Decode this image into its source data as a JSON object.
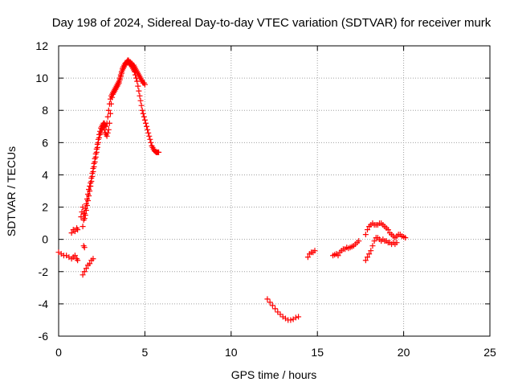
{
  "chart_data": {
    "type": "scatter",
    "title": "Day 198 of 2024, Sidereal Day-to-day VTEC variation (SDTVAR) for receiver murk",
    "xlabel": "GPS time / hours",
    "ylabel": "SDTVAR / TECUs",
    "xlim": [
      0,
      25
    ],
    "ylim": [
      -6,
      12
    ],
    "x_ticks": [
      0,
      5,
      10,
      15,
      20,
      25
    ],
    "y_ticks": [
      -6,
      -4,
      -2,
      0,
      2,
      4,
      6,
      8,
      10,
      12
    ],
    "x_tick_labels": [
      "0",
      "5",
      "10",
      "15",
      "20",
      "25"
    ],
    "y_tick_labels": [
      "-6",
      "-4",
      "-2",
      "0",
      "2",
      "4",
      "6",
      "8",
      "10",
      "12"
    ],
    "grid": true,
    "marker": "+",
    "color": "#ff0000",
    "series": [
      {
        "name": "SDTVAR",
        "segments": [
          {
            "x": [
              0.0,
              0.15,
              0.3,
              0.45,
              0.6,
              0.75,
              0.85,
              0.95,
              1.05,
              1.1
            ],
            "y": [
              -0.8,
              -0.9,
              -1.0,
              -1.0,
              -1.1,
              -1.2,
              -1.1,
              -1.0,
              -1.2,
              -1.3
            ]
          },
          {
            "x": [
              0.75,
              0.85,
              0.95,
              1.05,
              1.1
            ],
            "y": [
              0.4,
              0.6,
              0.5,
              0.7,
              0.6
            ]
          },
          {
            "x": [
              1.4,
              1.5,
              1.6,
              1.7,
              1.8,
              1.9,
              2.0
            ],
            "y": [
              -2.2,
              -2.0,
              -1.8,
              -1.6,
              -1.5,
              -1.3,
              -1.2
            ]
          },
          {
            "x": [
              1.4,
              1.45,
              1.5,
              1.55,
              1.6,
              1.65,
              1.7,
              1.75,
              1.8,
              1.85,
              1.9,
              1.95,
              2.0,
              2.05,
              2.1,
              2.15,
              2.2,
              2.25,
              2.3,
              2.35,
              2.4,
              2.45,
              2.5,
              2.55,
              2.6,
              2.65,
              2.7,
              2.75,
              2.8,
              2.85,
              2.9,
              2.95,
              3.0,
              3.05,
              3.1,
              3.15,
              3.2,
              3.25,
              3.3,
              3.35,
              3.4,
              3.45,
              3.5,
              3.55,
              3.6,
              3.65,
              3.7,
              3.75,
              3.8,
              3.85,
              3.9,
              3.95,
              4.0,
              4.05,
              4.1,
              4.15,
              4.2,
              4.25,
              4.3,
              4.35,
              4.4,
              4.45,
              4.5,
              4.55,
              4.6,
              4.65,
              4.7,
              4.75,
              4.8,
              4.85,
              4.9,
              4.95,
              5.0,
              5.05,
              5.1,
              5.15,
              5.2,
              5.25,
              5.3,
              5.35,
              5.4,
              5.45,
              5.5,
              5.55,
              5.6,
              5.65,
              5.7,
              5.75,
              5.8
            ],
            "y": [
              0.8,
              1.2,
              1.6,
              1.9,
              2.2,
              2.5,
              2.8,
              3.1,
              3.3,
              3.5,
              3.8,
              4.1,
              4.4,
              4.7,
              5.0,
              5.3,
              5.6,
              5.9,
              6.2,
              6.5,
              6.7,
              6.9,
              7.0,
              7.1,
              7.2,
              7.2,
              7.1,
              7.0,
              7.2,
              7.6,
              8.0,
              8.4,
              8.7,
              8.9,
              9.0,
              9.1,
              9.2,
              9.3,
              9.4,
              9.5,
              9.6,
              9.7,
              9.8,
              10.0,
              10.2,
              10.4,
              10.6,
              10.7,
              10.8,
              10.9,
              10.95,
              11.0,
              11.0,
              10.95,
              10.9,
              10.85,
              10.8,
              10.7,
              10.6,
              10.5,
              10.4,
              10.2,
              10.0,
              9.8,
              9.5,
              9.2,
              8.9,
              8.6,
              8.3,
              8.0,
              7.8,
              7.6,
              7.4,
              7.2,
              7.0,
              6.8,
              6.6,
              6.4,
              6.2,
              6.0,
              5.8,
              5.7,
              5.6,
              5.5,
              5.45,
              5.4,
              5.4,
              5.4,
              5.4
            ]
          },
          {
            "x": [
              1.3,
              1.35,
              1.4,
              1.45,
              1.5,
              1.55,
              1.6,
              1.65,
              1.7,
              1.75,
              1.8,
              1.85,
              1.9,
              1.95,
              2.0,
              2.05,
              2.1,
              2.15,
              2.2,
              2.25,
              2.3,
              2.35,
              2.4,
              2.45,
              2.5,
              2.55,
              2.6,
              2.65,
              2.7,
              2.75,
              2.8,
              2.85,
              2.9,
              2.95,
              3.0,
              3.05,
              3.1,
              3.15,
              3.2,
              3.25,
              3.3,
              3.35,
              3.4,
              3.45,
              3.5,
              3.55,
              3.6,
              3.65,
              3.7,
              3.75,
              3.8,
              3.85,
              3.9,
              3.95,
              4.0,
              4.05,
              4.1,
              4.15,
              4.2,
              4.25,
              4.3,
              4.35,
              4.4,
              4.45,
              4.5,
              4.55,
              4.6,
              4.65,
              4.7,
              4.75,
              4.8,
              4.85,
              4.9,
              4.95,
              5.0
            ],
            "y": [
              1.4,
              1.7,
              2.0,
              1.6,
              1.3,
              1.5,
              1.8,
              2.1,
              2.4,
              2.7,
              3.0,
              3.3,
              3.6,
              3.9,
              4.2,
              4.5,
              4.8,
              5.1,
              5.4,
              5.7,
              6.0,
              6.3,
              6.5,
              6.6,
              6.8,
              6.9,
              7.0,
              6.8,
              6.6,
              6.5,
              6.4,
              6.6,
              6.8,
              7.2,
              7.8,
              8.4,
              8.8,
              9.0,
              9.1,
              9.2,
              9.3,
              9.4,
              9.5,
              9.6,
              9.7,
              9.9,
              10.1,
              10.3,
              10.5,
              10.6,
              10.7,
              10.8,
              10.9,
              11.0,
              11.1,
              11.1,
              11.0,
              11.0,
              10.9,
              10.9,
              10.8,
              10.8,
              10.7,
              10.6,
              10.5,
              10.4,
              10.3,
              10.2,
              10.1,
              10.0,
              9.9,
              9.8,
              9.7,
              9.7,
              9.6
            ]
          },
          {
            "x": [
              1.45,
              1.5
            ],
            "y": [
              -0.4,
              -0.5
            ]
          },
          {
            "x": [
              12.1,
              12.25,
              12.4,
              12.55,
              12.7,
              12.85,
              13.0,
              13.15,
              13.3,
              13.45,
              13.6,
              13.75,
              13.9
            ],
            "y": [
              -3.7,
              -3.9,
              -4.1,
              -4.3,
              -4.5,
              -4.65,
              -4.8,
              -4.9,
              -5.0,
              -5.0,
              -4.95,
              -4.85,
              -4.8
            ]
          },
          {
            "x": [
              14.45,
              14.55,
              14.65,
              14.75,
              14.85
            ],
            "y": [
              -1.1,
              -0.9,
              -0.8,
              -0.8,
              -0.7
            ]
          },
          {
            "x": [
              15.9,
              16.0,
              16.1,
              16.2,
              16.3,
              16.4,
              16.5,
              16.6,
              16.7,
              16.8,
              16.9,
              17.0,
              17.1,
              17.2,
              17.3,
              17.4
            ],
            "y": [
              -1.0,
              -0.95,
              -0.9,
              -1.0,
              -0.8,
              -0.7,
              -0.6,
              -0.6,
              -0.5,
              -0.55,
              -0.5,
              -0.45,
              -0.4,
              -0.3,
              -0.2,
              -0.1
            ]
          },
          {
            "x": [
              17.8,
              17.9,
              18.0,
              18.1,
              18.2,
              18.3,
              18.4,
              18.5,
              18.6,
              18.7,
              18.8,
              18.9,
              19.0,
              19.1,
              19.2,
              19.3,
              19.4,
              19.5,
              19.6,
              19.7,
              19.8,
              19.9,
              20.0,
              20.1
            ],
            "y": [
              0.3,
              0.6,
              0.8,
              0.9,
              1.0,
              0.9,
              0.9,
              0.9,
              1.0,
              1.0,
              0.9,
              0.8,
              0.7,
              0.6,
              0.4,
              0.3,
              0.2,
              0.1,
              0.2,
              0.3,
              0.3,
              0.2,
              0.15,
              0.1
            ]
          },
          {
            "x": [
              17.8,
              17.9,
              18.0,
              18.1,
              18.2,
              18.3,
              18.4,
              18.5,
              18.6,
              18.7,
              18.8,
              18.9,
              19.0,
              19.1,
              19.2,
              19.3,
              19.4,
              19.5,
              19.6
            ],
            "y": [
              -1.3,
              -1.1,
              -0.9,
              -0.7,
              -0.4,
              -0.1,
              0.1,
              0.1,
              0.0,
              -0.1,
              0.0,
              -0.1,
              -0.1,
              -0.2,
              -0.2,
              -0.3,
              -0.2,
              -0.3,
              -0.2
            ]
          }
        ]
      }
    ]
  }
}
